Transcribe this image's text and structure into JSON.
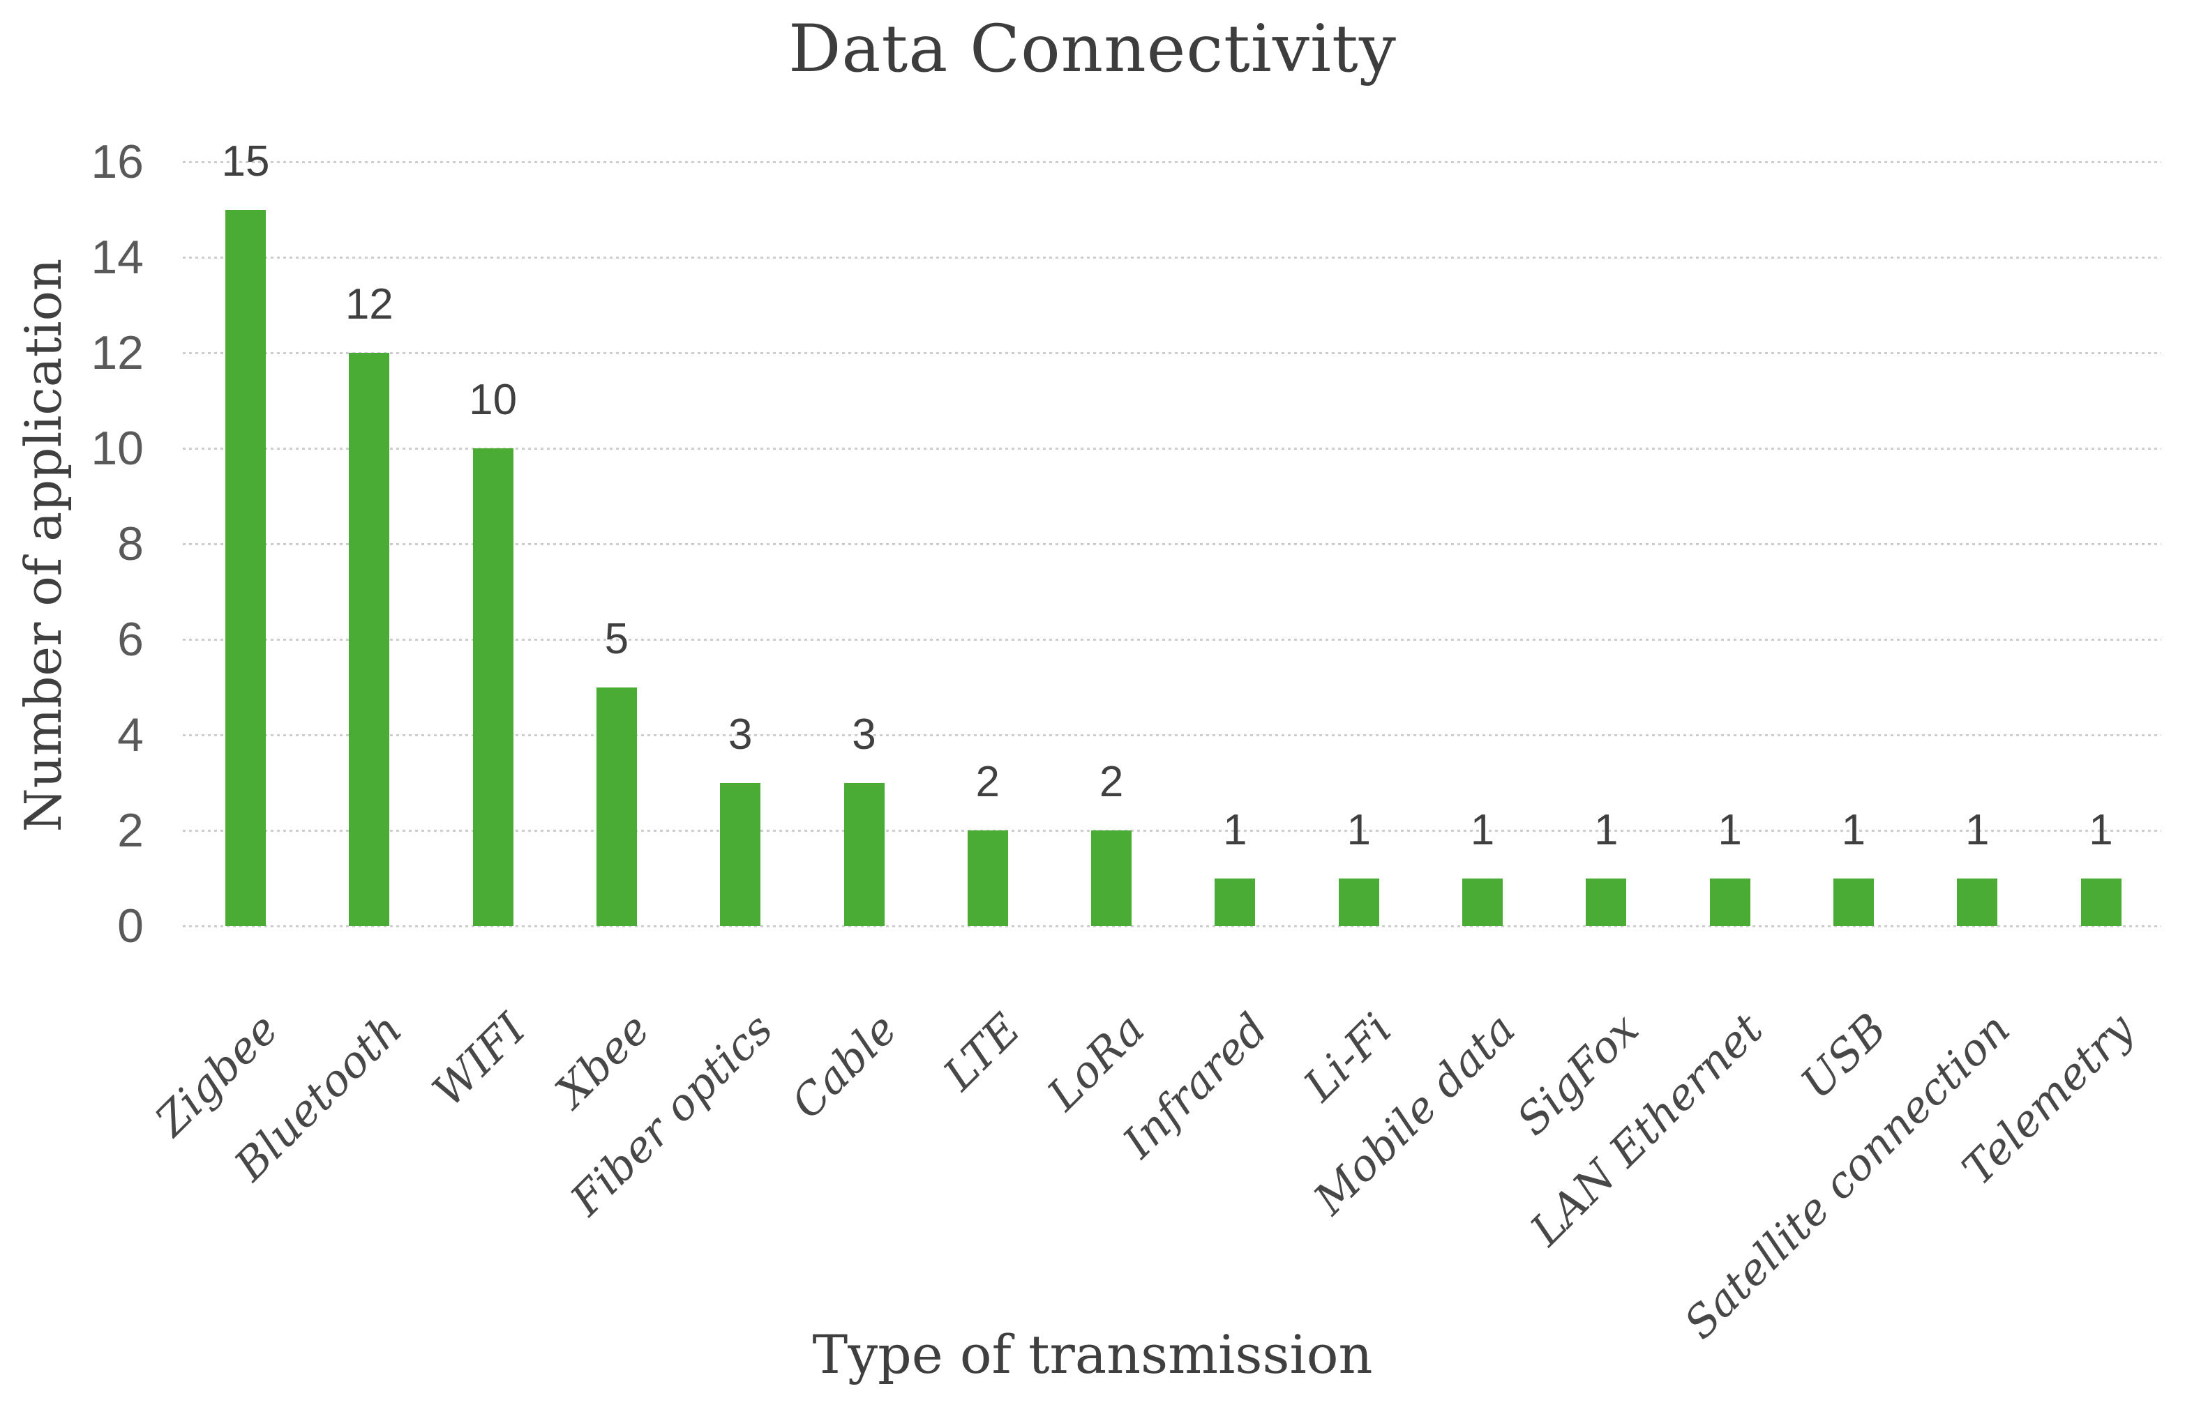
{
  "chart_data": {
    "type": "bar",
    "title": "Data Connectivity",
    "xlabel": "Type of transmission",
    "ylabel": "Number of application",
    "categories": [
      "Zigbee",
      "Bluetooth",
      "WIFI",
      "Xbee",
      "Fiber optics",
      "Cable",
      "LTE",
      "LoRa",
      "Infrared",
      "Li-Fi",
      "Mobile data",
      "SigFox",
      "LAN Ethernet",
      "USB",
      "Satellite connection",
      "Telemetry"
    ],
    "values": [
      15,
      12,
      10,
      5,
      3,
      3,
      2,
      2,
      1,
      1,
      1,
      1,
      1,
      1,
      1,
      1
    ],
    "ylim": [
      0,
      16
    ],
    "yticks": [
      0,
      2,
      4,
      6,
      8,
      10,
      12,
      14,
      16
    ],
    "grid": "horizontal-dotted",
    "legend": "none",
    "data_labels_position": "outside-end",
    "colors": {
      "bar": "#4BAC35",
      "gridline": "#CDCDCD",
      "tick_text": "#595959",
      "title_text": "#3D3D3D",
      "axis_title_text": "#3F3F3F",
      "data_label_text": "#404040",
      "category_text": "#474747"
    }
  }
}
